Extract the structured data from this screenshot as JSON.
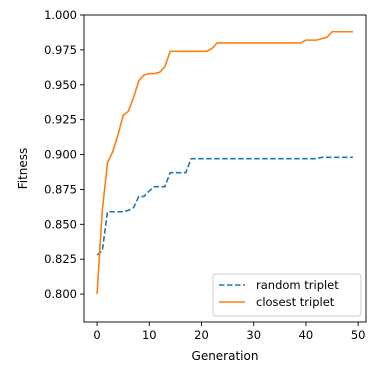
{
  "chart_data": {
    "type": "line",
    "title": "",
    "xlabel": "Generation",
    "ylabel": "Fitness",
    "xlim": [
      -2.5,
      51.5
    ],
    "ylim": [
      0.78,
      1.0
    ],
    "grid": false,
    "legend_position": "lower right",
    "x_ticks": [
      0,
      10,
      20,
      30,
      40,
      50
    ],
    "x_tick_labels": [
      "0",
      "10",
      "20",
      "30",
      "40",
      "50"
    ],
    "y_ticks": [
      0.8,
      0.825,
      0.85,
      0.875,
      0.9,
      0.925,
      0.95,
      0.975,
      1.0
    ],
    "y_tick_labels": [
      "0.800",
      "0.825",
      "0.850",
      "0.875",
      "0.900",
      "0.925",
      "0.950",
      "0.975",
      "1.000"
    ],
    "series": [
      {
        "name": "random triplet",
        "color": "#1f77b4",
        "style": "dashed",
        "x": [
          0,
          1,
          2,
          3,
          4,
          5,
          6,
          7,
          8,
          9,
          10,
          11,
          12,
          13,
          14,
          15,
          16,
          17,
          18,
          19,
          20,
          21,
          22,
          23,
          24,
          25,
          26,
          27,
          28,
          29,
          30,
          31,
          32,
          33,
          34,
          35,
          36,
          37,
          38,
          39,
          40,
          41,
          42,
          43,
          44,
          45,
          46,
          47,
          48,
          49
        ],
        "y": [
          0.828,
          0.831,
          0.859,
          0.859,
          0.859,
          0.859,
          0.86,
          0.862,
          0.87,
          0.87,
          0.874,
          0.877,
          0.877,
          0.877,
          0.887,
          0.887,
          0.887,
          0.887,
          0.897,
          0.897,
          0.897,
          0.897,
          0.897,
          0.897,
          0.897,
          0.897,
          0.897,
          0.897,
          0.897,
          0.897,
          0.897,
          0.897,
          0.897,
          0.897,
          0.897,
          0.897,
          0.897,
          0.897,
          0.897,
          0.897,
          0.897,
          0.897,
          0.897,
          0.898,
          0.898,
          0.898,
          0.898,
          0.898,
          0.898,
          0.898
        ]
      },
      {
        "name": "closest triplet",
        "color": "#ff7f0e",
        "style": "solid",
        "x": [
          0,
          1,
          2,
          3,
          4,
          5,
          6,
          7,
          8,
          9,
          10,
          11,
          12,
          13,
          14,
          15,
          16,
          17,
          18,
          19,
          20,
          21,
          22,
          23,
          24,
          25,
          26,
          27,
          28,
          29,
          30,
          31,
          32,
          33,
          34,
          35,
          36,
          37,
          38,
          39,
          40,
          41,
          42,
          43,
          44,
          45,
          46,
          47,
          48,
          49
        ],
        "y": [
          0.8,
          0.86,
          0.894,
          0.902,
          0.914,
          0.928,
          0.931,
          0.941,
          0.953,
          0.957,
          0.958,
          0.958,
          0.959,
          0.963,
          0.974,
          0.974,
          0.974,
          0.974,
          0.974,
          0.974,
          0.974,
          0.974,
          0.976,
          0.98,
          0.98,
          0.98,
          0.98,
          0.98,
          0.98,
          0.98,
          0.98,
          0.98,
          0.98,
          0.98,
          0.98,
          0.98,
          0.98,
          0.98,
          0.98,
          0.98,
          0.982,
          0.982,
          0.982,
          0.983,
          0.984,
          0.988,
          0.988,
          0.988,
          0.988,
          0.988
        ]
      }
    ]
  }
}
